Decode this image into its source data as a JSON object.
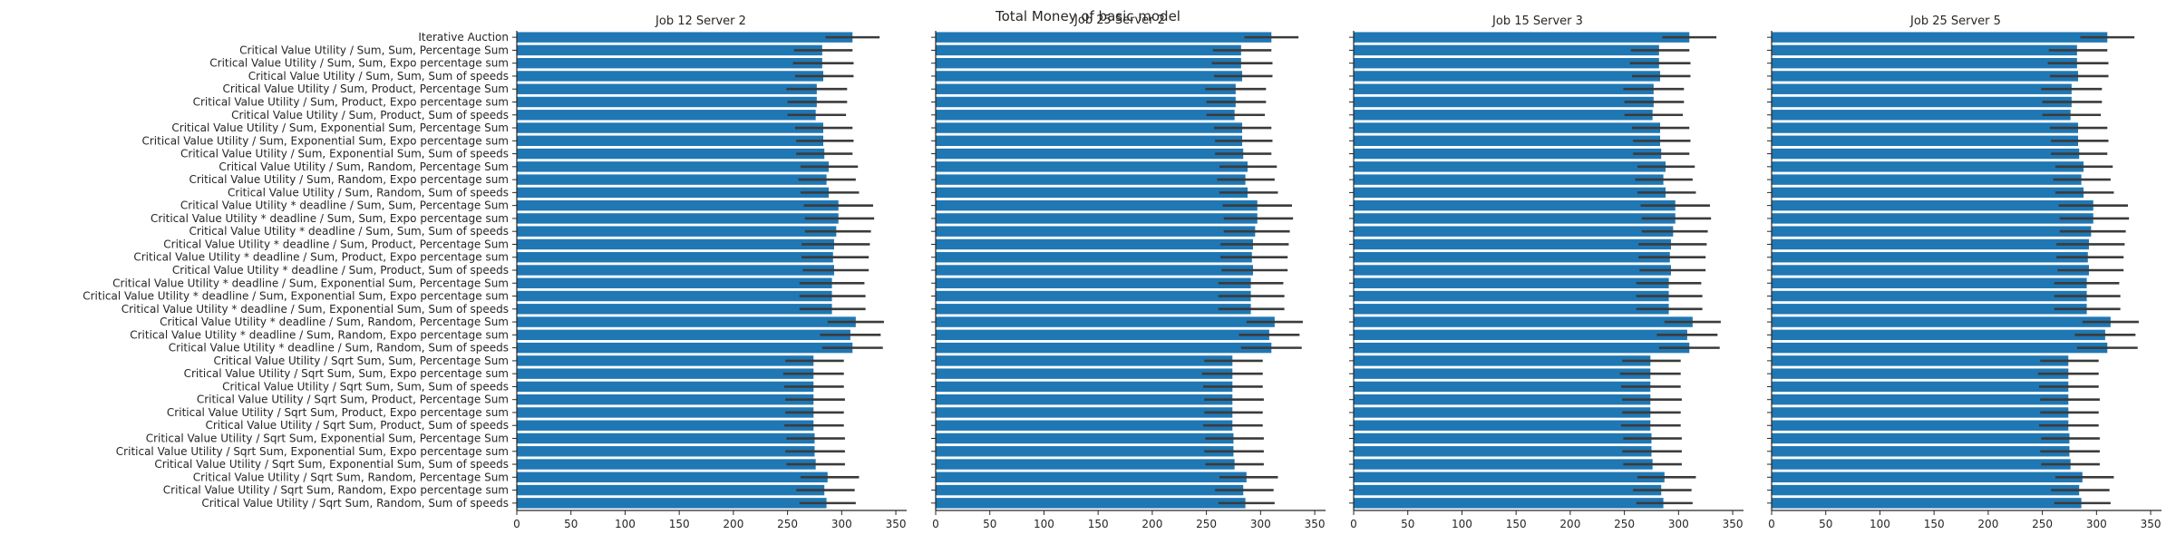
{
  "chart_data": {
    "type": "bar",
    "orientation": "horizontal",
    "title": "Total Money of basic model",
    "xlim": [
      0,
      360
    ],
    "xticks": [
      0,
      50,
      100,
      150,
      200,
      250,
      300,
      350
    ],
    "bar_color": "#1f77b4",
    "errorbar_color": "#3b3b3b",
    "categories": [
      "Iterative Auction",
      "Critical Value Utility / Sum, Sum, Percentage Sum",
      "Critical Value Utility / Sum, Sum, Expo percentage sum",
      "Critical Value Utility / Sum, Sum, Sum of speeds",
      "Critical Value Utility / Sum, Product, Percentage Sum",
      "Critical Value Utility / Sum, Product, Expo percentage sum",
      "Critical Value Utility / Sum, Product, Sum of speeds",
      "Critical Value Utility / Sum, Exponential Sum, Percentage Sum",
      "Critical Value Utility / Sum, Exponential Sum, Expo percentage sum",
      "Critical Value Utility / Sum, Exponential Sum, Sum of speeds",
      "Critical Value Utility / Sum, Random, Percentage Sum",
      "Critical Value Utility / Sum, Random, Expo percentage sum",
      "Critical Value Utility / Sum, Random, Sum of speeds",
      "Critical Value Utility * deadline / Sum, Sum, Percentage Sum",
      "Critical Value Utility * deadline / Sum, Sum, Expo percentage sum",
      "Critical Value Utility * deadline / Sum, Sum, Sum of speeds",
      "Critical Value Utility * deadline / Sum, Product, Percentage Sum",
      "Critical Value Utility * deadline / Sum, Product, Expo percentage sum",
      "Critical Value Utility * deadline / Sum, Product, Sum of speeds",
      "Critical Value Utility * deadline / Sum, Exponential Sum, Percentage Sum",
      "Critical Value Utility * deadline / Sum, Exponential Sum, Expo percentage sum",
      "Critical Value Utility * deadline / Sum, Exponential Sum, Sum of speeds",
      "Critical Value Utility * deadline / Sum, Random, Percentage Sum",
      "Critical Value Utility * deadline / Sum, Random, Expo percentage sum",
      "Critical Value Utility * deadline / Sum, Random, Sum of speeds",
      "Critical Value Utility / Sqrt Sum, Sum, Percentage Sum",
      "Critical Value Utility / Sqrt Sum, Sum, Expo percentage sum",
      "Critical Value Utility / Sqrt Sum, Sum, Sum of speeds",
      "Critical Value Utility / Sqrt Sum, Product, Percentage Sum",
      "Critical Value Utility / Sqrt Sum, Product, Expo percentage sum",
      "Critical Value Utility / Sqrt Sum, Product, Sum of speeds",
      "Critical Value Utility / Sqrt Sum, Exponential Sum, Percentage Sum",
      "Critical Value Utility / Sqrt Sum, Exponential Sum, Expo percentage sum",
      "Critical Value Utility / Sqrt Sum, Exponential Sum, Sum of speeds",
      "Critical Value Utility / Sqrt Sum, Random, Percentage Sum",
      "Critical Value Utility / Sqrt Sum, Random, Expo percentage sum",
      "Critical Value Utility / Sqrt Sum, Random, Sum of speeds"
    ],
    "panels": [
      {
        "title": "Job 12 Server 2",
        "values": [
          310,
          282,
          282,
          283,
          277,
          277,
          276,
          283,
          283,
          284,
          288,
          286,
          288,
          297,
          297,
          295,
          293,
          292,
          293,
          291,
          291,
          291,
          313,
          308,
          310,
          274,
          274,
          274,
          274,
          274,
          274,
          275,
          275,
          276,
          287,
          284,
          286
        ],
        "err_low": [
          285,
          256,
          255,
          257,
          249,
          250,
          250,
          257,
          258,
          258,
          262,
          260,
          262,
          265,
          266,
          266,
          263,
          263,
          264,
          261,
          261,
          261,
          287,
          280,
          282,
          248,
          246,
          247,
          248,
          248,
          247,
          249,
          248,
          249,
          262,
          258,
          261
        ],
        "err_high": [
          335,
          310,
          311,
          311,
          305,
          305,
          304,
          310,
          311,
          310,
          315,
          313,
          316,
          329,
          330,
          327,
          326,
          325,
          325,
          321,
          322,
          322,
          339,
          336,
          338,
          302,
          302,
          302,
          303,
          302,
          302,
          303,
          303,
          303,
          316,
          312,
          313
        ]
      },
      {
        "title": "Job 25 Server 2",
        "values": [
          310,
          282,
          282,
          283,
          277,
          277,
          276,
          283,
          283,
          284,
          288,
          286,
          288,
          297,
          297,
          295,
          293,
          292,
          293,
          291,
          291,
          291,
          313,
          308,
          310,
          274,
          274,
          274,
          274,
          274,
          274,
          275,
          275,
          276,
          287,
          284,
          286
        ],
        "err_low": [
          285,
          256,
          255,
          257,
          249,
          250,
          250,
          257,
          258,
          258,
          262,
          260,
          262,
          265,
          266,
          266,
          263,
          263,
          264,
          261,
          261,
          261,
          287,
          280,
          282,
          248,
          246,
          247,
          248,
          248,
          247,
          249,
          248,
          249,
          262,
          258,
          261
        ],
        "err_high": [
          335,
          310,
          311,
          311,
          305,
          305,
          304,
          310,
          311,
          310,
          315,
          313,
          316,
          329,
          330,
          327,
          326,
          325,
          325,
          321,
          322,
          322,
          339,
          336,
          338,
          302,
          302,
          302,
          303,
          302,
          302,
          303,
          303,
          303,
          316,
          312,
          313
        ]
      },
      {
        "title": "Job 15 Server 3",
        "values": [
          310,
          282,
          282,
          283,
          277,
          277,
          276,
          283,
          283,
          284,
          288,
          286,
          288,
          297,
          297,
          295,
          293,
          292,
          293,
          291,
          291,
          291,
          313,
          308,
          310,
          274,
          274,
          274,
          274,
          274,
          274,
          275,
          275,
          276,
          287,
          284,
          286
        ],
        "err_low": [
          285,
          256,
          255,
          257,
          249,
          250,
          250,
          257,
          258,
          258,
          262,
          260,
          262,
          265,
          266,
          266,
          263,
          263,
          264,
          261,
          261,
          261,
          287,
          280,
          282,
          248,
          246,
          247,
          248,
          248,
          247,
          249,
          248,
          249,
          262,
          258,
          261
        ],
        "err_high": [
          335,
          310,
          311,
          311,
          305,
          305,
          304,
          310,
          311,
          310,
          315,
          313,
          316,
          329,
          330,
          327,
          326,
          325,
          325,
          321,
          322,
          322,
          339,
          336,
          338,
          302,
          302,
          302,
          303,
          302,
          302,
          303,
          303,
          303,
          316,
          312,
          313
        ]
      },
      {
        "title": "Job 25 Server 5",
        "values": [
          310,
          282,
          282,
          283,
          277,
          277,
          276,
          283,
          283,
          284,
          288,
          286,
          288,
          297,
          297,
          295,
          293,
          292,
          293,
          291,
          291,
          291,
          313,
          308,
          310,
          274,
          274,
          274,
          274,
          274,
          274,
          275,
          275,
          276,
          287,
          284,
          286
        ],
        "err_low": [
          285,
          256,
          255,
          257,
          249,
          250,
          250,
          257,
          258,
          258,
          262,
          260,
          262,
          265,
          266,
          266,
          263,
          263,
          264,
          261,
          261,
          261,
          287,
          280,
          282,
          248,
          246,
          247,
          248,
          248,
          247,
          249,
          248,
          249,
          262,
          258,
          261
        ],
        "err_high": [
          335,
          310,
          311,
          311,
          305,
          305,
          304,
          310,
          311,
          310,
          315,
          313,
          316,
          329,
          330,
          327,
          326,
          325,
          325,
          321,
          322,
          322,
          339,
          336,
          338,
          302,
          302,
          302,
          303,
          302,
          302,
          303,
          303,
          303,
          316,
          312,
          313
        ]
      }
    ]
  }
}
